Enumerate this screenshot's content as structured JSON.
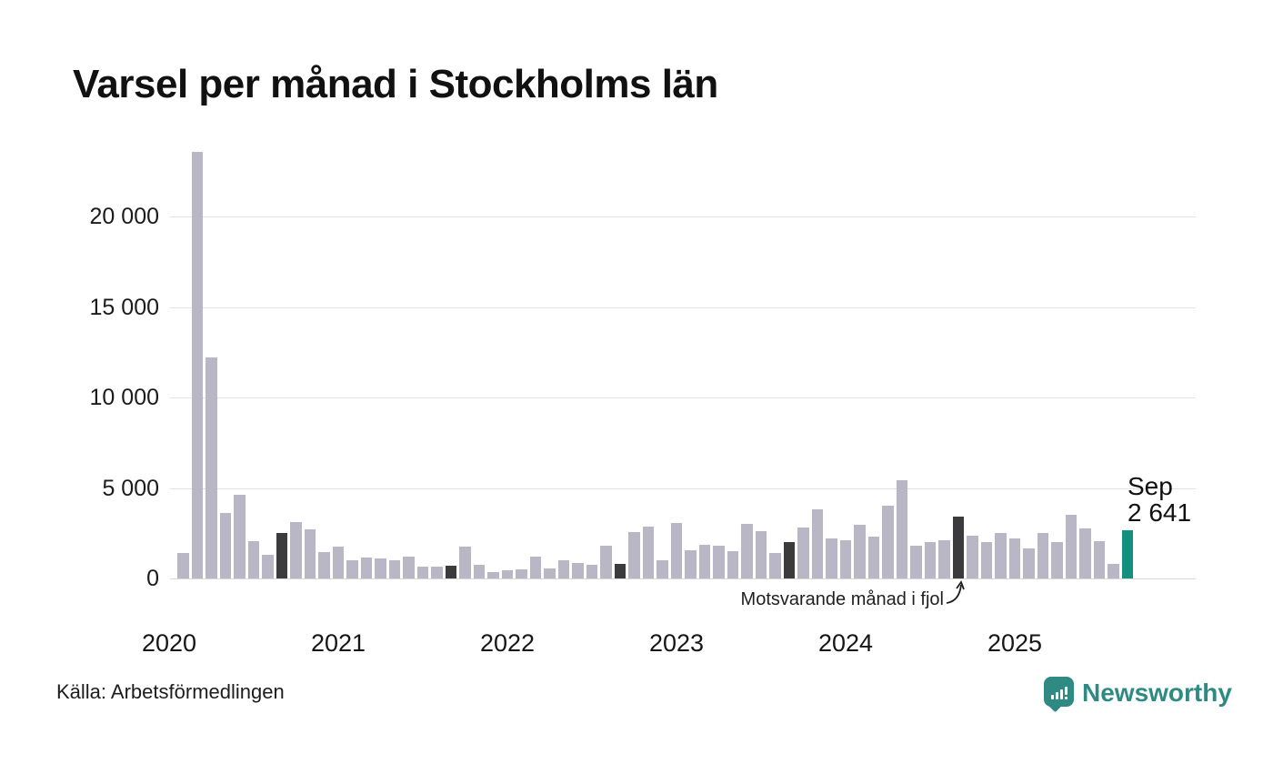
{
  "title": "Varsel per månad i Stockholms län",
  "source": "Källa: Arbetsförmedlingen",
  "brand": {
    "name": "Newsworthy",
    "color": "#2f8a84"
  },
  "annotation": {
    "text": "Motsvarande månad i fjol",
    "points_to": "2024-09"
  },
  "highlight_label": {
    "line1": "Sep",
    "line2": "2 641"
  },
  "colors": {
    "bar": "#b9b7c5",
    "same_month_last_year": "#3b3b3d",
    "current_month": "#13917e",
    "grid": "#e3e3e3",
    "text": "#111111"
  },
  "chart_data": {
    "type": "bar",
    "title": "Varsel per månad i Stockholms län",
    "xlabel": "",
    "ylabel": "",
    "ylim": [
      0,
      24000
    ],
    "grid": true,
    "legend": false,
    "yticks": [
      0,
      5000,
      10000,
      15000,
      20000
    ],
    "ytick_labels": [
      "0",
      "5 000",
      "10 000",
      "15 000",
      "20 000"
    ],
    "year_labels": [
      "2020",
      "2021",
      "2022",
      "2023",
      "2024",
      "2025"
    ],
    "x": [
      "2020-02",
      "2020-03",
      "2020-04",
      "2020-05",
      "2020-06",
      "2020-07",
      "2020-08",
      "2020-09",
      "2020-10",
      "2020-11",
      "2020-12",
      "2021-01",
      "2021-02",
      "2021-03",
      "2021-04",
      "2021-05",
      "2021-06",
      "2021-07",
      "2021-08",
      "2021-09",
      "2021-10",
      "2021-11",
      "2021-12",
      "2022-01",
      "2022-02",
      "2022-03",
      "2022-04",
      "2022-05",
      "2022-06",
      "2022-07",
      "2022-08",
      "2022-09",
      "2022-10",
      "2022-11",
      "2022-12",
      "2023-01",
      "2023-02",
      "2023-03",
      "2023-04",
      "2023-05",
      "2023-06",
      "2023-07",
      "2023-08",
      "2023-09",
      "2023-10",
      "2023-11",
      "2023-12",
      "2024-01",
      "2024-02",
      "2024-03",
      "2024-04",
      "2024-05",
      "2024-06",
      "2024-07",
      "2024-08",
      "2024-09",
      "2024-10",
      "2024-11",
      "2024-12",
      "2025-01",
      "2025-02",
      "2025-03",
      "2025-04",
      "2025-05",
      "2025-06",
      "2025-07",
      "2025-08",
      "2025-09"
    ],
    "values": [
      1400,
      23600,
      12200,
      3600,
      4650,
      2050,
      1300,
      2500,
      3100,
      2700,
      1450,
      1750,
      1000,
      1150,
      1100,
      1000,
      1200,
      650,
      650,
      700,
      1750,
      750,
      350,
      450,
      500,
      1200,
      550,
      1000,
      875,
      750,
      1800,
      800,
      2550,
      2850,
      1000,
      3050,
      1550,
      1850,
      1800,
      1500,
      3000,
      2600,
      1400,
      2000,
      2800,
      3800,
      2200,
      2100,
      2950,
      2300,
      4000,
      5450,
      1800,
      2000,
      2100,
      3400,
      2350,
      2000,
      2500,
      2200,
      1650,
      2500,
      2000,
      3500,
      2750,
      2050,
      800,
      2641
    ],
    "highlight_months": [
      "2020-09",
      "2021-09",
      "2022-09",
      "2023-09",
      "2024-09"
    ],
    "current_month": "2025-09",
    "current_month_value_label": "2 641"
  }
}
